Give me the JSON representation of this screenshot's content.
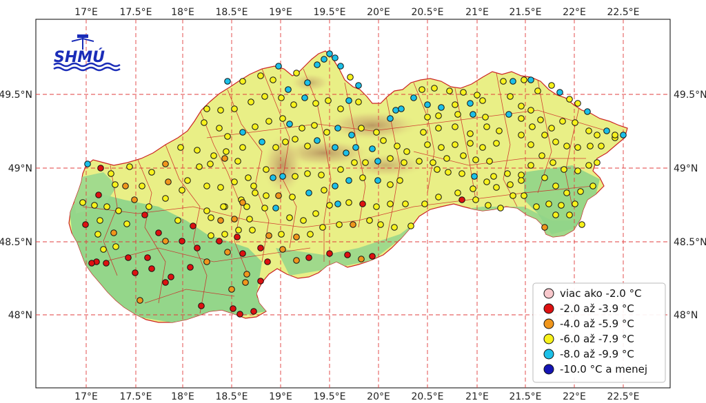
{
  "logo": {
    "text": "SHMÚ",
    "color": "#1a2cb8"
  },
  "colors": {
    "lowland": "#8fd48a",
    "upland": "#e9ef86",
    "mountain": "#c9a86a",
    "border": "#cc2222",
    "grid": "#e03c3c"
  },
  "axes": {
    "lon_ticks": [
      "17°E",
      "17.5°E",
      "18°E",
      "18.5°E",
      "19°E",
      "19.5°E",
      "20°E",
      "20.5°E",
      "21°E",
      "21.5°E",
      "22°E",
      "22.5°E"
    ],
    "lat_ticks": [
      "49.5°N",
      "49°N",
      "48.5°N",
      "48°N"
    ]
  },
  "legend": [
    {
      "label": "viac ako -2.0 °C",
      "color": "#f8c8cc"
    },
    {
      "label": "-2.0 až -3.9 °C",
      "color": "#dd1111"
    },
    {
      "label": "-4.0 až -5.9 °C",
      "color": "#f0961c"
    },
    {
      "label": "-6.0 až -7.9 °C",
      "color": "#f8f21c"
    },
    {
      "label": "-8.0 až -9.9 °C",
      "color": "#1cc0e8"
    },
    {
      "label": "-10.0 °C a menej",
      "color": "#1414b4"
    }
  ]
}
